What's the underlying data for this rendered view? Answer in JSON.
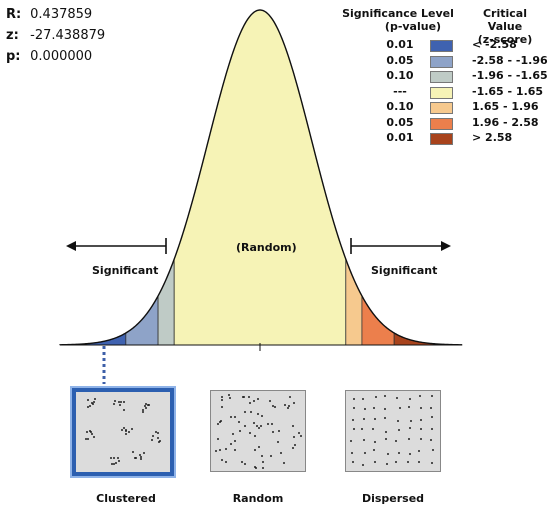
{
  "stats": {
    "r_label": "R:",
    "r_value": "0.437859",
    "z_label": "z:",
    "z_value": "-27.438879",
    "p_label": "p:",
    "p_value": "0.000000"
  },
  "legend": {
    "col1_title_line1": "Significance Level",
    "col1_title_line2": "(p-value)",
    "col2_title_line1": "Critical Value",
    "col2_title_line2": "(z-score)",
    "rows": [
      {
        "p": "0.01",
        "color": "#3f62b0",
        "z": "< -2.58"
      },
      {
        "p": "0.05",
        "color": "#8ea3c8",
        "z": "-2.58 - -1.96"
      },
      {
        "p": "0.10",
        "color": "#bfcbc6",
        "z": "-1.96 - -1.65"
      },
      {
        "p": "---",
        "color": "#f6f3b6",
        "z": "-1.65 - 1.65"
      },
      {
        "p": "0.10",
        "color": "#f6c98e",
        "z": "1.65 - 1.96"
      },
      {
        "p": "0.05",
        "color": "#ec7f4c",
        "z": "1.96 - 2.58"
      },
      {
        "p": "0.01",
        "color": "#a8431c",
        "z": "> 2.58"
      }
    ]
  },
  "curve": {
    "center_label": "(Random)",
    "left_label": "Significant",
    "right_label": "Significant"
  },
  "patterns": [
    {
      "caption": "Clustered",
      "selected": true
    },
    {
      "caption": "Random",
      "selected": false
    },
    {
      "caption": "Dispersed",
      "selected": false
    }
  ]
}
